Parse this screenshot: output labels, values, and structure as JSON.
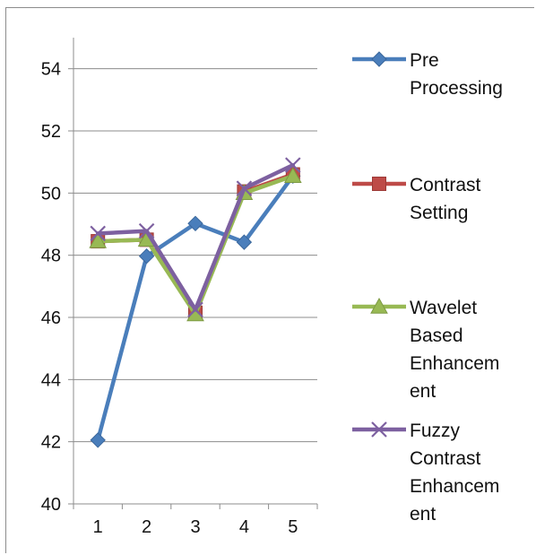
{
  "chart_data": {
    "type": "line",
    "title": "",
    "xlabel": "",
    "ylabel": "",
    "categories": [
      "1",
      "2",
      "3",
      "4",
      "5"
    ],
    "ylim": [
      40,
      55
    ],
    "yticks": [
      "40",
      "42",
      "44",
      "46",
      "48",
      "50",
      "52",
      "54"
    ],
    "ytick_values": [
      40,
      42,
      44,
      46,
      48,
      50,
      52,
      54
    ],
    "grid": true,
    "legend_position": "right",
    "series": [
      {
        "name": "Pre Processing",
        "legend_lines": [
          "Pre",
          "Processing"
        ],
        "color": "#4a7ebb",
        "marker": "diamond",
        "values": [
          42.05,
          47.97,
          49.02,
          48.42,
          50.55
        ]
      },
      {
        "name": "Contrast Setting",
        "legend_lines": [
          "Contrast",
          "Setting"
        ],
        "color": "#be4b48",
        "marker": "square",
        "values": [
          48.45,
          48.5,
          46.15,
          50.05,
          50.6
        ]
      },
      {
        "name": "Wavelet Based Enhancement",
        "legend_lines": [
          "Wavelet",
          "Based",
          "Enhancem",
          "ent"
        ],
        "color": "#98b954",
        "marker": "triangle",
        "values": [
          48.45,
          48.5,
          46.1,
          50.0,
          50.55
        ]
      },
      {
        "name": "Fuzzy Contrast Enhancement",
        "legend_lines": [
          "Fuzzy",
          "Contrast",
          "Enhancem",
          "ent"
        ],
        "color": "#7d60a0",
        "marker": "x",
        "values": [
          48.7,
          48.78,
          46.25,
          50.15,
          50.9
        ]
      }
    ]
  }
}
